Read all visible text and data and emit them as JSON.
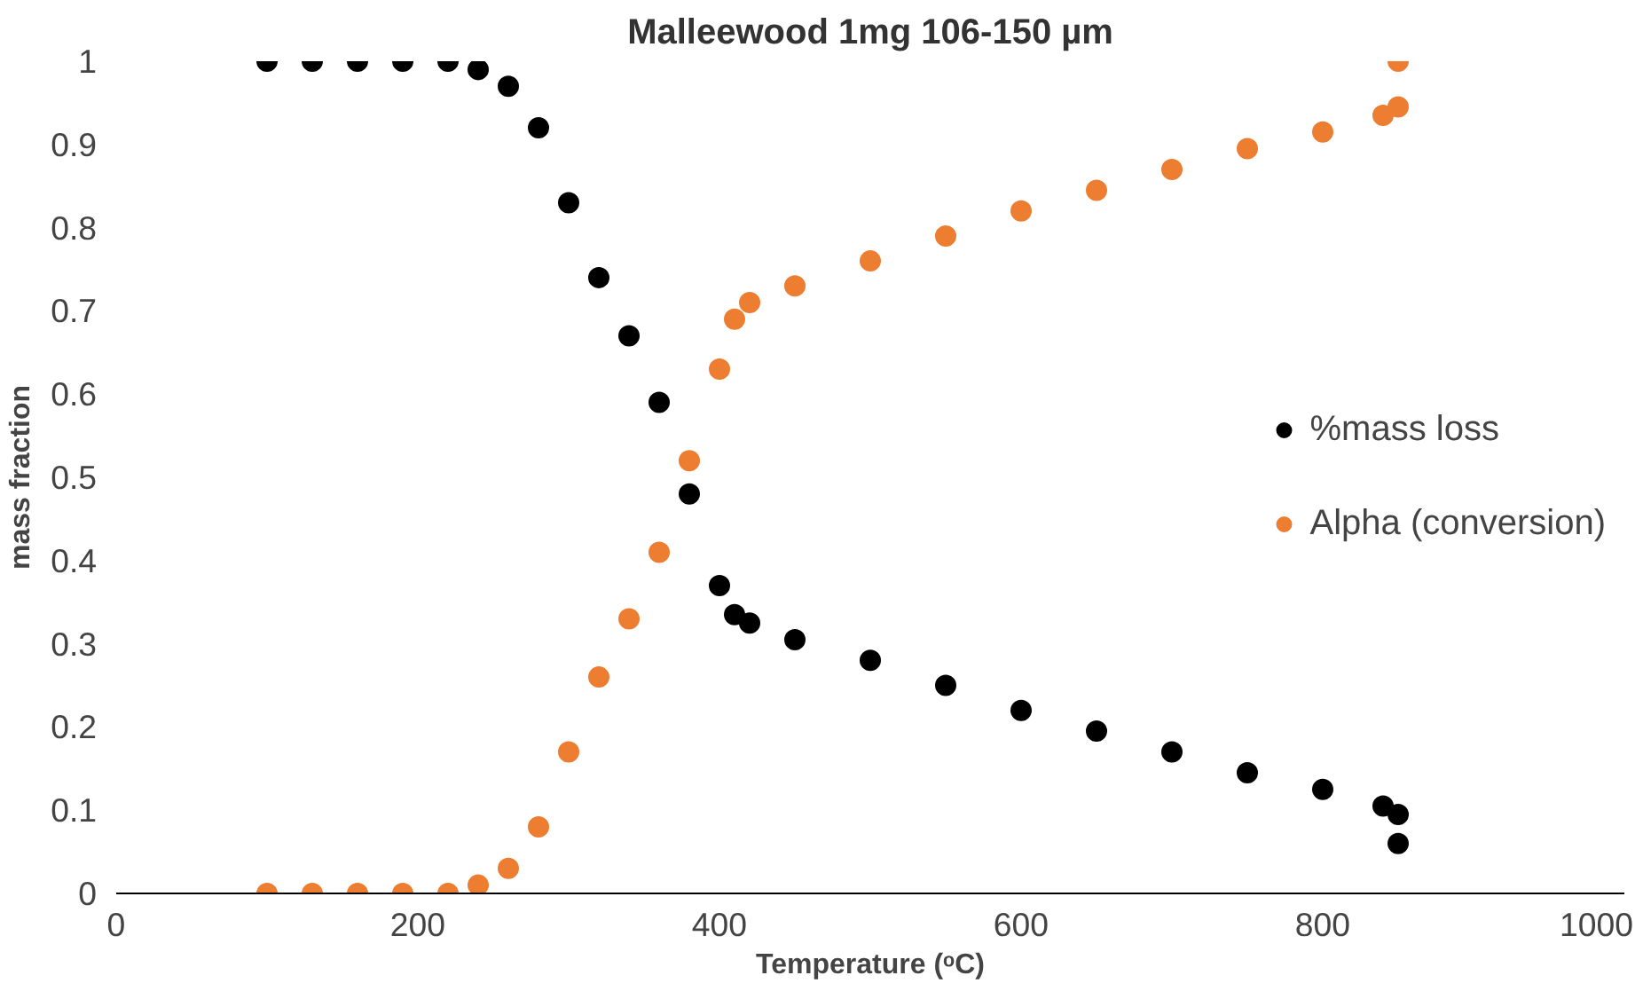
{
  "chart_data": {
    "type": "scatter",
    "title": "Malleewood 1mg 106-150 µm",
    "xlabel": "Temperature (ᵒC)",
    "ylabel": "mass fraction",
    "xlim": [
      0,
      1000
    ],
    "xticks": [
      0,
      200,
      400,
      600,
      800,
      1000
    ],
    "ylim": [
      0,
      1
    ],
    "yticks": [
      0,
      0.1,
      0.2,
      0.3,
      0.4,
      0.5,
      0.6,
      0.7,
      0.8,
      0.9,
      1
    ],
    "grid": false,
    "legend": "right",
    "marker": "circle",
    "x": [
      100,
      130,
      160,
      190,
      220,
      240,
      260,
      280,
      300,
      320,
      340,
      360,
      380,
      400,
      410,
      420,
      450,
      500,
      550,
      600,
      650,
      700,
      750,
      800,
      840,
      850,
      850
    ],
    "series": [
      {
        "name": "%mass loss",
        "color": "#000000",
        "values": [
          1,
          1,
          1,
          1,
          1,
          0.99,
          0.97,
          0.92,
          0.83,
          0.74,
          0.67,
          0.59,
          0.48,
          0.37,
          0.335,
          0.325,
          0.305,
          0.28,
          0.25,
          0.22,
          0.195,
          0.17,
          0.145,
          0.125,
          0.105,
          0.095,
          0.06
        ]
      },
      {
        "name": "Alpha (conversion)",
        "color": "#ed7d31",
        "values": [
          0,
          0,
          0,
          0,
          0,
          0.01,
          0.03,
          0.08,
          0.17,
          0.26,
          0.33,
          0.41,
          0.52,
          0.63,
          0.69,
          0.71,
          0.73,
          0.76,
          0.79,
          0.82,
          0.845,
          0.87,
          0.895,
          0.915,
          0.935,
          0.945,
          1.0
        ]
      }
    ]
  }
}
